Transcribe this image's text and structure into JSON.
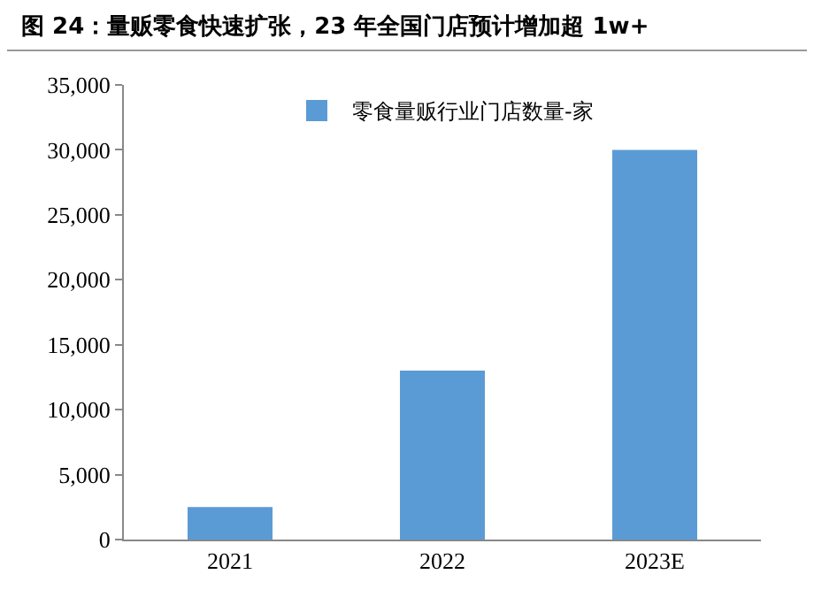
{
  "chart_data": {
    "type": "bar",
    "title": "图 24：量贩零食快速扩张，23 年全国门店预计增加超 1w+",
    "categories": [
      "2021",
      "2022",
      "2023E"
    ],
    "series": [
      {
        "name": "零食量贩行业门店数量-家",
        "color": "#5b9bd5",
        "values": [
          2500,
          13000,
          30000
        ]
      }
    ],
    "ylim": [
      0,
      35000
    ],
    "yticks": [
      0,
      {
        "value": 5000,
        "label": "5,000"
      },
      {
        "value": 10000,
        "label": "10,000"
      },
      {
        "value": 15000,
        "label": "15,000"
      },
      {
        "value": 20000,
        "label": "20,000"
      },
      {
        "value": 25000,
        "label": "25,000"
      },
      {
        "value": 30000,
        "label": "30,000"
      },
      {
        "value": 35000,
        "label": "35,000"
      }
    ],
    "grid": false,
    "legend": "top"
  }
}
